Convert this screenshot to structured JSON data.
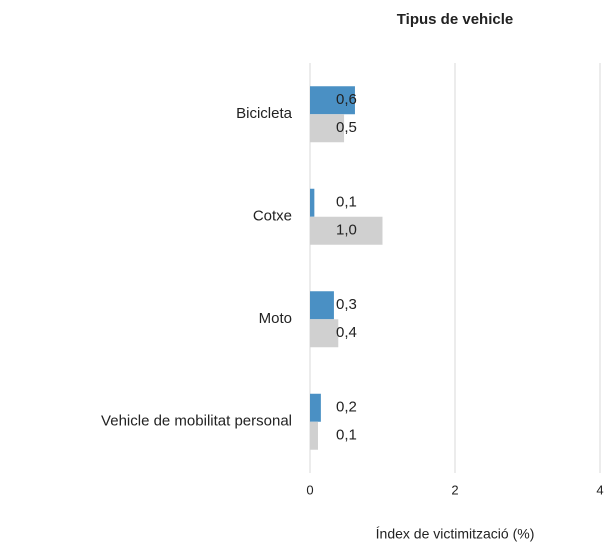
{
  "chart_data": {
    "type": "barh",
    "title": "Tipus de vehicle",
    "categories": [
      "Bicicleta",
      "Cotxe",
      "Moto",
      "Vehicle de mobilitat personal"
    ],
    "series": [
      {
        "color": "#4a90c4",
        "values": [
          0.62,
          0.06,
          0.33,
          0.15
        ],
        "value_labels": [
          "0,6",
          "0,1",
          "0,3",
          "0,2"
        ]
      },
      {
        "color": "#d0d0d0",
        "values": [
          0.47,
          1.0,
          0.39,
          0.11
        ],
        "value_labels": [
          "0,5",
          "1,0",
          "0,4",
          "0,1"
        ]
      }
    ],
    "xlabel": "Índex de victimització (%)",
    "xlim": [
      0,
      4
    ],
    "xticks": [
      0,
      2,
      4
    ],
    "grid": true
  }
}
